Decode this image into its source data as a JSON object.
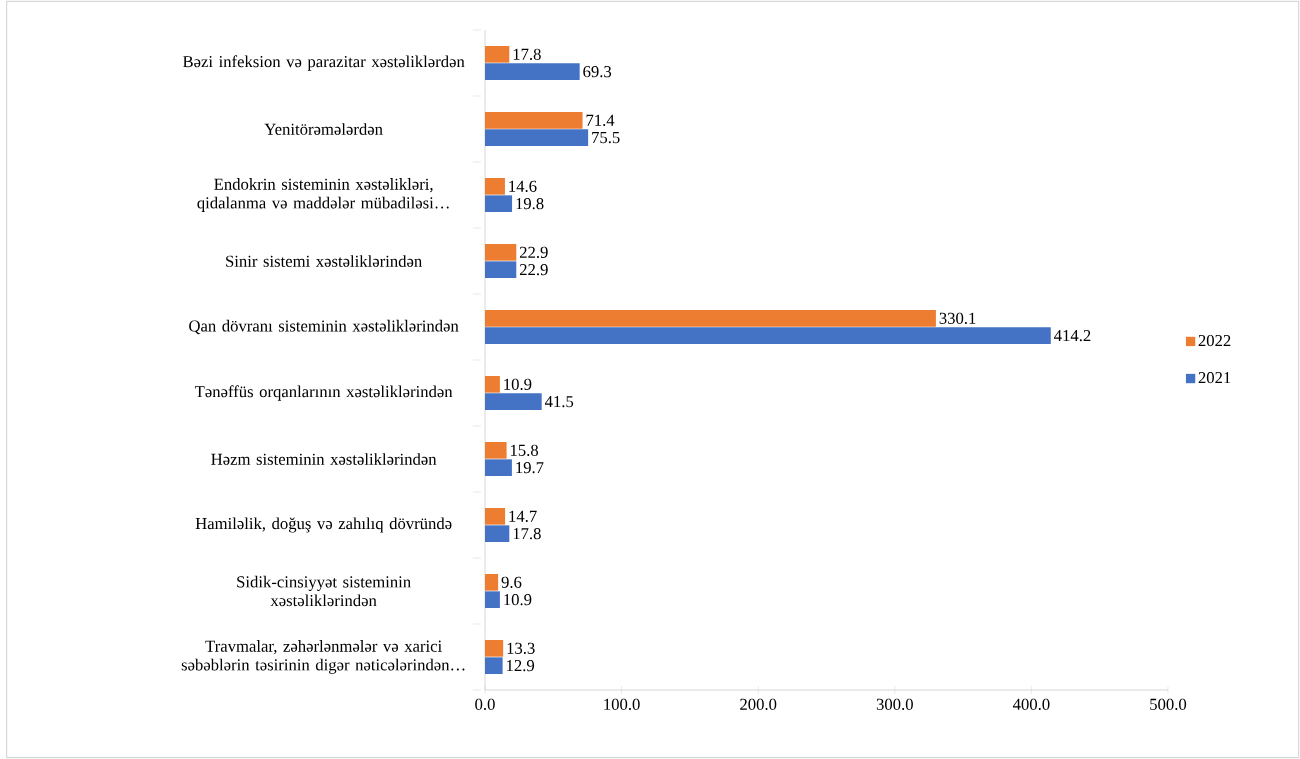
{
  "chart_data": {
    "type": "bar",
    "orientation": "horizontal",
    "categories": [
      "Bəzi infeksion və parazitar xəstəliklərdən",
      "Yenitörəmələrdən",
      "Endokrin sisteminin xəstəlikləri, qidalanma və maddələr mübadiləsi…",
      "Sinir sistemi xəstəliklərindən",
      "Qan dövranı sisteminin xəstəliklərindən",
      "Tənəffüs orqanlarının xəstəliklərindən",
      "Həzm sisteminin xəstəliklərindən",
      "Hamiləlik, doğuş və zahılıq dövründə",
      "Sidik-cinsiyyət sisteminin xəstəliklərindən",
      "Travmalar, zəhərlənmələr və xarici səbəblərin təsirinin digər nəticələrindən…"
    ],
    "series": [
      {
        "name": "2022",
        "color": "#ed7d31",
        "values": [
          17.8,
          71.4,
          14.6,
          22.9,
          330.1,
          10.9,
          15.8,
          14.7,
          9.6,
          13.3
        ]
      },
      {
        "name": "2021",
        "color": "#4472c4",
        "values": [
          69.3,
          75.5,
          19.8,
          22.9,
          414.2,
          41.5,
          19.7,
          17.8,
          10.9,
          12.9
        ]
      }
    ],
    "xlim": [
      0,
      500
    ],
    "xticks": [
      {
        "value": 0,
        "label": "0.0"
      },
      {
        "value": 100,
        "label": "100.0"
      },
      {
        "value": 200,
        "label": "200.0"
      },
      {
        "value": 300,
        "label": "300.0"
      },
      {
        "value": 400,
        "label": "400.0"
      },
      {
        "value": 500,
        "label": "500.0"
      }
    ],
    "data_labels": true,
    "legend": "right",
    "grid": false
  }
}
